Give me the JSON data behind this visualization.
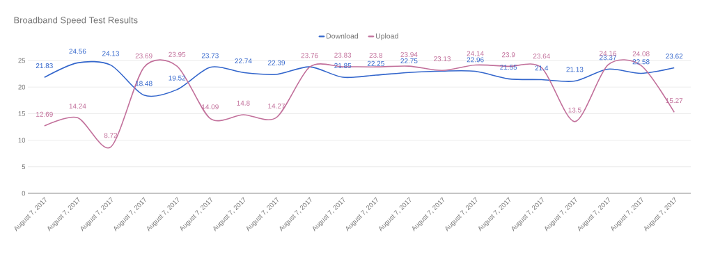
{
  "chart_data": {
    "type": "line",
    "title": "Broadband Speed Test Results",
    "categories": [
      "August 7, 2017",
      "August 7, 2017",
      "August 7, 2017",
      "August 7, 2017",
      "August 7, 2017",
      "August 7, 2017",
      "August 7, 2017",
      "August 7, 2017",
      "August 7, 2017",
      "August 7, 2017",
      "August 7, 2017",
      "August 7, 2017",
      "August 7, 2017",
      "August 7, 2017",
      "August 7, 2017",
      "August 7, 2017",
      "August 7, 2017",
      "August 7, 2017",
      "August 7, 2017",
      "August 7, 2017"
    ],
    "series": [
      {
        "name": "Download",
        "color": "#3366cc",
        "values": [
          21.83,
          24.56,
          24.13,
          18.48,
          19.52,
          23.73,
          22.74,
          22.39,
          23.8,
          21.85,
          22.25,
          22.75,
          23.0,
          22.96,
          21.55,
          21.4,
          21.13,
          23.37,
          22.58,
          23.62
        ],
        "value_labels": [
          "21.83",
          "24.56",
          "24.13",
          "18.48",
          "19.52",
          "23.73",
          "22.74",
          "22.39",
          null,
          "21.85",
          "22.25",
          "22.75",
          null,
          "22.96",
          "21.55",
          "21.4",
          "21.13",
          "23.37",
          "22.58",
          "23.62"
        ]
      },
      {
        "name": "Upload",
        "color": "#c2709b",
        "values": [
          12.69,
          14.24,
          8.72,
          23.69,
          23.95,
          14.09,
          14.8,
          14.27,
          23.76,
          23.83,
          23.8,
          23.94,
          23.13,
          24.14,
          23.9,
          23.64,
          13.5,
          24.16,
          24.08,
          15.27
        ]
      }
    ],
    "ylim": [
      0,
      25
    ],
    "yticks": [
      0,
      5,
      10,
      15,
      20,
      25
    ],
    "grid": "y",
    "legend": "top",
    "marker": "none",
    "line_style": "solid",
    "data_labels": true
  }
}
